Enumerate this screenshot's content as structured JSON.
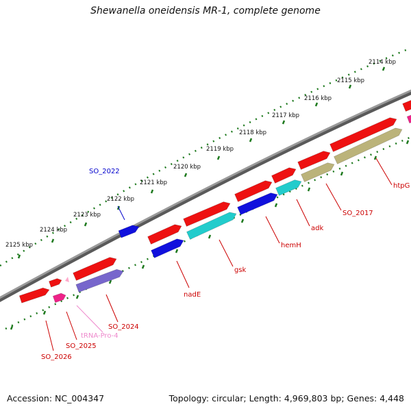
{
  "title": "Shewanella oneidensis MR-1, complete genome",
  "accession_label": "Accession: NC_004347",
  "topology_label": "Topology: circular; Length: 4,969,803 bp; Genes: 4,448",
  "ticks": [
    "2114 kbp",
    "2115 kbp",
    "2116 kbp",
    "2117 kbp",
    "2118 kbp",
    "2119 kbp",
    "2120 kbp",
    "2121 kbp",
    "2122 kbp",
    "2123 kbp",
    "2124 kbp",
    "2125 kbp"
  ],
  "gene_labels": [
    {
      "text": "SO_2022",
      "color": "#0000cc"
    },
    {
      "text": "htpG",
      "color": "#cc0000"
    },
    {
      "text": "SO_2017",
      "color": "#cc0000"
    },
    {
      "text": "adk",
      "color": "#cc0000"
    },
    {
      "text": "hemH",
      "color": "#cc0000"
    },
    {
      "text": "gsk",
      "color": "#cc0000"
    },
    {
      "text": "nadE",
      "color": "#cc0000"
    },
    {
      "text": "SO_2024",
      "color": "#cc0000"
    },
    {
      "text": "tRNA-Pro-4",
      "color": "#ee88cc"
    },
    {
      "text": "SO_2025",
      "color": "#cc0000"
    },
    {
      "text": "SO_2026",
      "color": "#cc0000"
    }
  ],
  "colors": {
    "backbone": "#888888",
    "tick": "#1f7a1f",
    "cds": "#ee1111",
    "gene_blue": "#1010dd",
    "gene_cyan": "#22cccc",
    "gene_olive": "#bbb37a",
    "gene_purple": "#7766cc",
    "gene_pink": "#ee2288",
    "trna": "#ffaacc"
  }
}
